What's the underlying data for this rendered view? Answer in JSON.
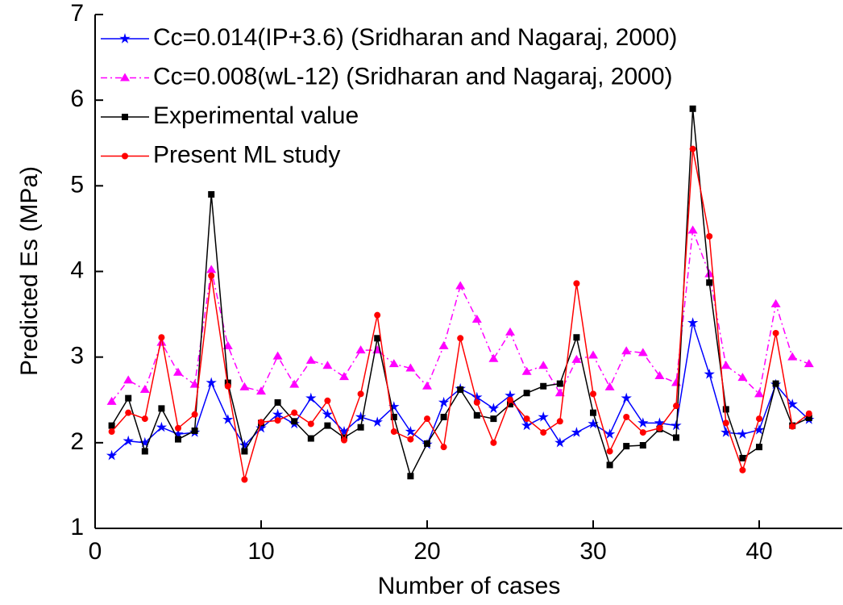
{
  "chart_data": {
    "type": "line",
    "x_label": "Number of cases",
    "y_label": "Predicted Es (MPa)",
    "x": [
      1,
      2,
      3,
      4,
      5,
      6,
      7,
      8,
      9,
      10,
      11,
      12,
      13,
      14,
      15,
      16,
      17,
      18,
      19,
      20,
      21,
      22,
      23,
      24,
      25,
      26,
      27,
      28,
      29,
      30,
      31,
      32,
      33,
      34,
      35,
      36,
      37,
      38,
      39,
      40,
      41,
      42,
      43
    ],
    "xlim": [
      0,
      45
    ],
    "xticks": [
      0,
      10,
      20,
      30,
      40
    ],
    "ylim": [
      1,
      7
    ],
    "yticks": [
      1,
      2,
      3,
      4,
      5,
      6,
      7
    ],
    "legend": "upper left",
    "series": [
      {
        "name": "Cc=0.014(IP+3.6) (Sridharan and Nagaraj, 2000)",
        "color": "#0000ff",
        "marker": "star",
        "dash": "solid",
        "values": [
          1.85,
          2.02,
          2.0,
          2.18,
          2.1,
          2.12,
          2.7,
          2.27,
          1.97,
          2.17,
          2.33,
          2.22,
          2.52,
          2.33,
          2.13,
          2.3,
          2.24,
          2.42,
          2.13,
          1.98,
          2.47,
          2.63,
          2.53,
          2.4,
          2.55,
          2.2,
          2.3,
          2.0,
          2.12,
          2.22,
          2.1,
          2.52,
          2.23,
          2.23,
          2.2,
          3.4,
          2.8,
          2.12,
          2.1,
          2.15,
          2.68,
          2.45,
          2.27
        ]
      },
      {
        "name": "Cc=0.008(wL-12) (Sridharan and Nagaraj, 2000)",
        "color": "#ff00ff",
        "marker": "triangle",
        "dash": "dashdot",
        "values": [
          2.48,
          2.73,
          2.62,
          3.17,
          2.82,
          2.68,
          4.02,
          3.13,
          2.65,
          2.6,
          3.01,
          2.68,
          2.96,
          2.9,
          2.77,
          3.08,
          3.08,
          2.92,
          2.87,
          2.66,
          3.13,
          3.83,
          3.44,
          2.98,
          3.29,
          2.83,
          2.9,
          2.58,
          2.97,
          3.02,
          2.65,
          3.07,
          3.05,
          2.78,
          2.7,
          4.48,
          3.97,
          2.9,
          2.76,
          2.57,
          3.62,
          3.0,
          2.92
        ]
      },
      {
        "name": "Experimental value",
        "color": "#000000",
        "marker": "square",
        "dash": "solid",
        "values": [
          2.2,
          2.52,
          1.9,
          2.4,
          2.04,
          2.14,
          4.9,
          2.7,
          1.9,
          2.23,
          2.47,
          2.25,
          2.05,
          2.2,
          2.06,
          2.18,
          3.22,
          2.3,
          1.61,
          1.99,
          2.3,
          2.62,
          2.32,
          2.28,
          2.45,
          2.58,
          2.66,
          2.69,
          3.23,
          2.35,
          1.74,
          1.96,
          1.97,
          2.16,
          2.06,
          5.9,
          3.87,
          2.39,
          1.82,
          1.95,
          2.69,
          2.2,
          2.29
        ]
      },
      {
        "name": "Present ML study",
        "color": "#ff0000",
        "marker": "circle",
        "dash": "solid",
        "values": [
          2.13,
          2.35,
          2.28,
          3.23,
          2.17,
          2.33,
          3.95,
          2.66,
          1.57,
          2.24,
          2.26,
          2.35,
          2.22,
          2.49,
          2.03,
          2.57,
          3.49,
          2.13,
          2.04,
          2.28,
          1.95,
          3.22,
          2.47,
          2.0,
          2.5,
          2.28,
          2.12,
          2.25,
          3.86,
          2.57,
          1.9,
          2.3,
          2.12,
          2.17,
          2.43,
          5.43,
          4.41,
          2.23,
          1.68,
          2.28,
          3.28,
          2.19,
          2.34
        ]
      }
    ]
  }
}
